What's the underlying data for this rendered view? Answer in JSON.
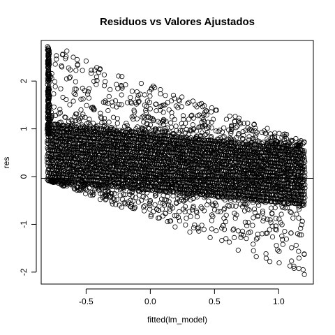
{
  "chart_data": {
    "type": "scatter",
    "title": "Residuos vs Valores Ajustados",
    "xlabel": "fitted(lm_model)",
    "ylabel": "res",
    "xlim": [
      -0.85,
      1.27
    ],
    "ylim": [
      -2.25,
      2.85
    ],
    "x_ticks": [
      -0.5,
      0.0,
      0.5,
      1.0
    ],
    "x_tick_labels": [
      "-0.5",
      "0.0",
      "0.5",
      "1.0"
    ],
    "y_ticks": [
      -2,
      -1,
      0,
      1,
      2
    ],
    "y_tick_labels": [
      "-2",
      "-1",
      "0",
      "1",
      "2"
    ],
    "reference_line_y": 0,
    "point_marker": "open-circle",
    "grid": false,
    "legend": "none",
    "x_range_of_fitted": [
      -0.8,
      1.2
    ],
    "dense_band": {
      "lower_at_xmin": -0.08,
      "lower_at_xmax": -0.6,
      "upper_at_xmin": 1.15,
      "upper_at_xmax": 0.6
    },
    "sparse_envelope": {
      "lower_at_xmin": -0.08,
      "lower_at_xmax": -2.05,
      "upper_at_xmin": 2.7,
      "upper_at_xmax": 0.75
    },
    "notable_points": [
      {
        "x": -0.8,
        "y": 2.72
      },
      {
        "x": -0.8,
        "y": 2.65
      },
      {
        "x": -0.65,
        "y": 2.63
      },
      {
        "x": -0.6,
        "y": 2.5
      },
      {
        "x": -0.57,
        "y": 2.45
      },
      {
        "x": -0.5,
        "y": 2.42
      },
      {
        "x": 1.2,
        "y": -2.05
      },
      {
        "x": 1.19,
        "y": -1.95
      },
      {
        "x": 1.12,
        "y": -1.92
      }
    ],
    "colors": {
      "points": "#000000",
      "axes": "#000000",
      "background": "#ffffff"
    }
  }
}
